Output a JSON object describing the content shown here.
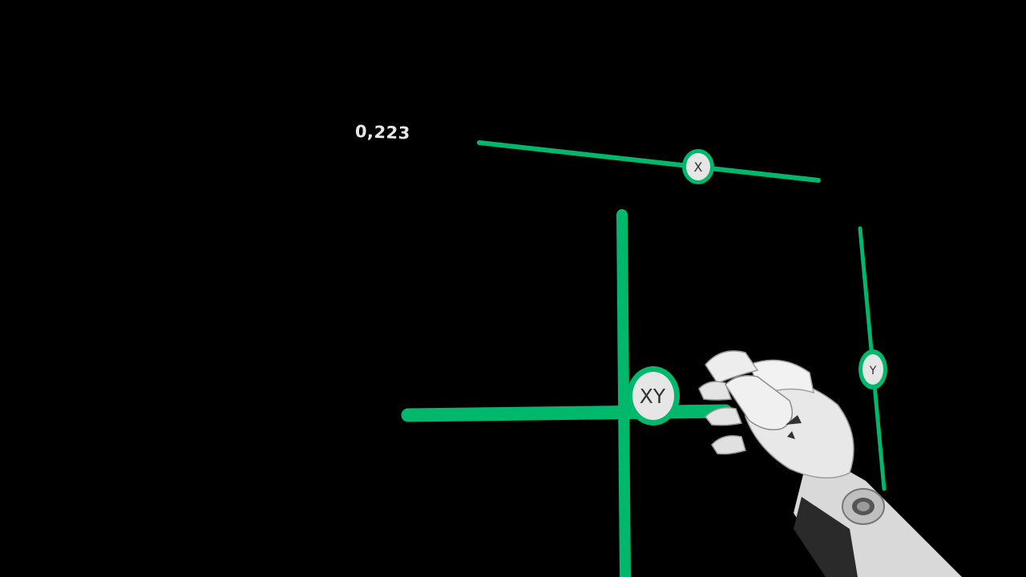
{
  "readout": {
    "value": "0,223"
  },
  "sliders": {
    "x": {
      "label": "X"
    },
    "y": {
      "label": "Y"
    },
    "xy": {
      "label": "XY"
    }
  },
  "colors": {
    "track": "#00b86b",
    "knob_fill": "#e6e6e6",
    "knob_ring": "#00b86b",
    "background": "#000000",
    "readout_text": "#e8e8e8"
  },
  "hand": {
    "icon": "robot-hand-icon"
  }
}
